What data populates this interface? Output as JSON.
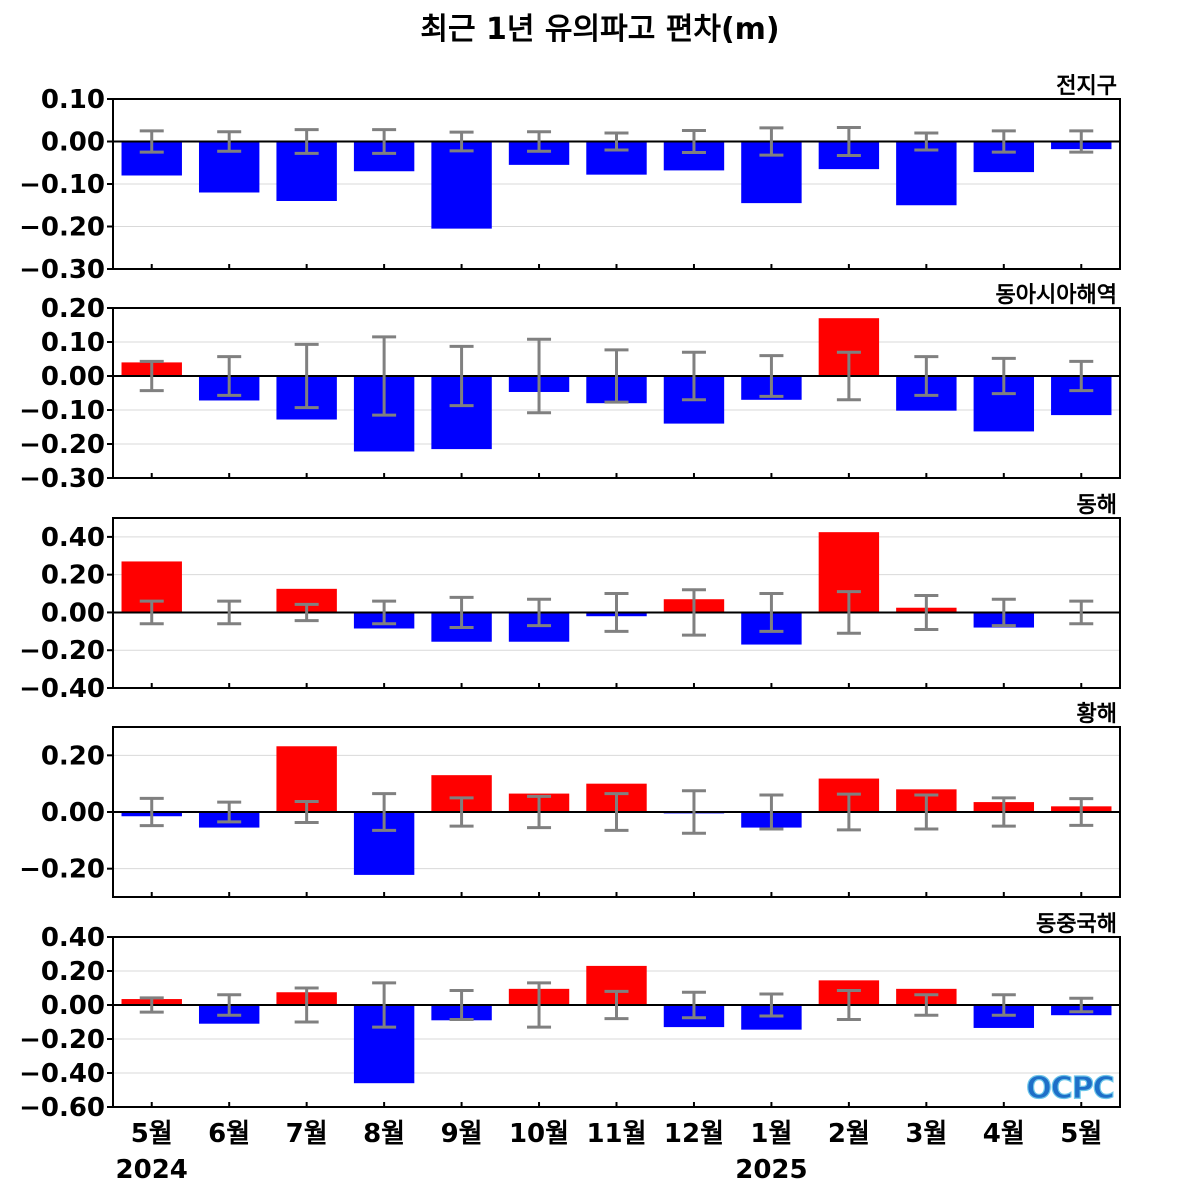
{
  "title": "최근 1년 유의파고 편차(m)",
  "colors": {
    "positive": "#ff0000",
    "negative": "#0000ff",
    "error_bar": "#808080",
    "zero_line": "#000000",
    "grid": "#d9d9d9"
  },
  "x_axis": {
    "categories": [
      "5월",
      "6월",
      "7월",
      "8월",
      "9월",
      "10월",
      "11월",
      "12월",
      "1월",
      "2월",
      "3월",
      "4월",
      "5월"
    ],
    "year_labels": [
      "2024",
      "2025"
    ]
  },
  "logo_text": "OCPC",
  "chart_data": [
    {
      "type": "bar",
      "title": "전지구",
      "ylim": [
        -0.3,
        0.1
      ],
      "yticks": [
        0.1,
        0.0,
        -0.1,
        -0.2,
        -0.3
      ],
      "tick_labels": [
        "0.10",
        "0.00",
        "−0.10",
        "−0.20",
        "−0.30"
      ],
      "values": [
        -0.08,
        -0.12,
        -0.14,
        -0.07,
        -0.205,
        -0.055,
        -0.078,
        -0.068,
        -0.145,
        -0.065,
        -0.15,
        -0.072,
        -0.018
      ],
      "error": [
        0.025,
        0.023,
        0.028,
        0.028,
        0.022,
        0.023,
        0.02,
        0.026,
        0.032,
        0.033,
        0.02,
        0.025,
        0.025
      ],
      "grid": true
    },
    {
      "type": "bar",
      "title": "동아시아해역",
      "ylim": [
        -0.3,
        0.2
      ],
      "yticks": [
        0.2,
        0.1,
        0.0,
        -0.1,
        -0.2,
        -0.3
      ],
      "tick_labels": [
        "0.20",
        "0.10",
        "0.00",
        "−0.10",
        "−0.20",
        "−0.30"
      ],
      "values": [
        0.04,
        -0.072,
        -0.128,
        -0.222,
        -0.215,
        -0.047,
        -0.08,
        -0.14,
        -0.07,
        0.17,
        -0.102,
        -0.163,
        -0.115
      ],
      "error": [
        0.043,
        0.057,
        0.093,
        0.115,
        0.087,
        0.108,
        0.077,
        0.07,
        0.06,
        0.07,
        0.057,
        0.052,
        0.043
      ],
      "grid": true
    },
    {
      "type": "bar",
      "title": "동해",
      "ylim": [
        -0.4,
        0.5
      ],
      "yticks": [
        0.4,
        0.2,
        0.0,
        -0.2,
        -0.4
      ],
      "tick_labels": [
        "0.40",
        "0.20",
        "0.00",
        "−0.20",
        "−0.40"
      ],
      "values": [
        0.27,
        -0.005,
        0.125,
        -0.085,
        -0.155,
        -0.155,
        -0.02,
        0.07,
        -0.17,
        0.425,
        0.025,
        -0.08,
        -0.005
      ],
      "error": [
        0.06,
        0.06,
        0.043,
        0.06,
        0.08,
        0.07,
        0.1,
        0.12,
        0.1,
        0.11,
        0.09,
        0.07,
        0.06
      ],
      "grid": true
    },
    {
      "type": "bar",
      "title": "황해",
      "ylim": [
        -0.3,
        0.3
      ],
      "yticks": [
        0.2,
        0.0,
        -0.2
      ],
      "tick_labels": [
        "0.20",
        "0.00",
        "−0.20"
      ],
      "values": [
        -0.015,
        -0.055,
        0.232,
        -0.222,
        0.13,
        0.065,
        0.1,
        -0.005,
        -0.055,
        0.118,
        0.08,
        0.035,
        0.02
      ],
      "error": [
        0.048,
        0.035,
        0.037,
        0.065,
        0.05,
        0.055,
        0.065,
        0.075,
        0.06,
        0.063,
        0.06,
        0.05,
        0.047
      ],
      "grid": true
    },
    {
      "type": "bar",
      "title": "동중국해",
      "ylim": [
        -0.6,
        0.4
      ],
      "yticks": [
        0.4,
        0.2,
        0.0,
        -0.2,
        -0.4,
        -0.6
      ],
      "tick_labels": [
        "0.40",
        "0.20",
        "0.00",
        "−0.20",
        "−0.40",
        "−0.60"
      ],
      "values": [
        0.035,
        -0.11,
        0.075,
        -0.46,
        -0.09,
        0.095,
        0.23,
        -0.13,
        -0.145,
        0.145,
        0.095,
        -0.135,
        -0.06
      ],
      "error": [
        0.042,
        0.06,
        0.1,
        0.13,
        0.085,
        0.13,
        0.08,
        0.075,
        0.065,
        0.085,
        0.06,
        0.06,
        0.04
      ],
      "grid": true
    }
  ]
}
